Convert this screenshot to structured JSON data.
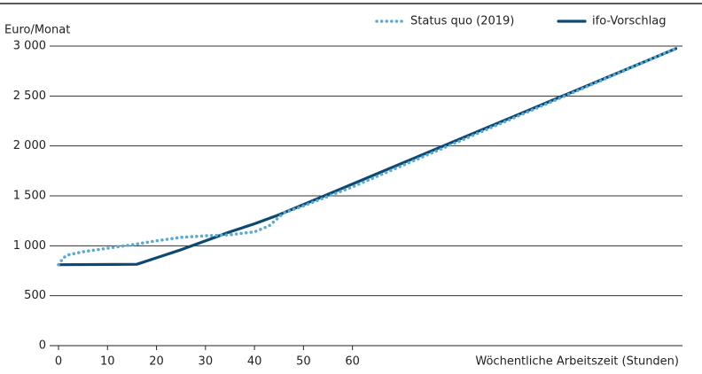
{
  "chart_data": {
    "type": "line",
    "y_label": "Euro/Monat",
    "x_label": "Wöchentliche Arbeitszeit (Stunden)",
    "xlim": [
      0,
      127
    ],
    "xticks": [
      0,
      10,
      20,
      30,
      40,
      50,
      60
    ],
    "ylim": [
      0,
      3000
    ],
    "yticks": [
      0,
      500,
      {
        "value": 1000,
        "label": "1 000"
      },
      {
        "value": 1500,
        "label": "1 500"
      },
      {
        "value": 2000,
        "label": "2 000"
      },
      {
        "value": 2500,
        "label": "2 500"
      },
      {
        "value": 3000,
        "label": "3 000"
      }
    ],
    "grid": true,
    "legend": "top-right",
    "series": [
      {
        "name": "Status quo (2019)",
        "color": "#5aaad6",
        "dash": true,
        "x": [
          0,
          1,
          2,
          5,
          10,
          15,
          20,
          25,
          30,
          35,
          40,
          43,
          46,
          50,
          60,
          126
        ],
        "values": [
          810,
          880,
          910,
          940,
          975,
          1010,
          1050,
          1085,
          1100,
          1110,
          1140,
          1200,
          1330,
          1400,
          1590,
          2975
        ]
      },
      {
        "name": "ifo-Vorschlag",
        "color": "#0d4a73",
        "dash": false,
        "x": [
          0,
          16,
          20,
          25,
          30,
          35,
          40,
          45,
          126
        ],
        "values": [
          810,
          815,
          880,
          960,
          1050,
          1140,
          1220,
          1310,
          2975
        ]
      }
    ]
  }
}
